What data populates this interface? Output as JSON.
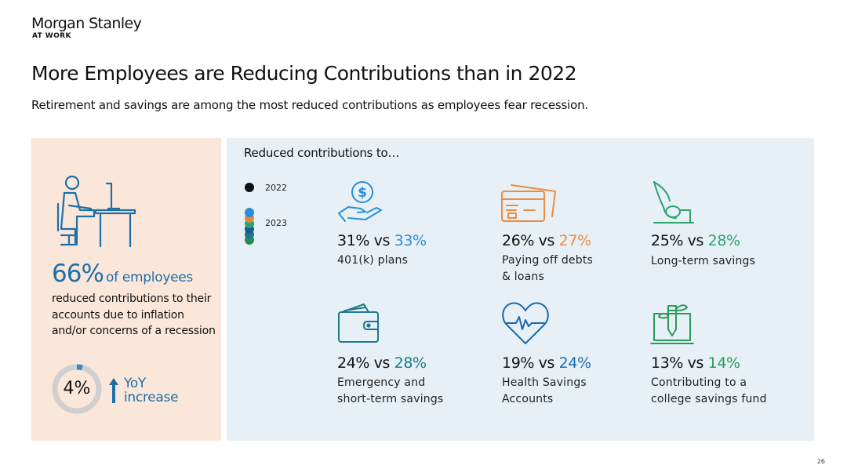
{
  "brand": {
    "name": "Morgan Stanley",
    "sub": "AT WORK"
  },
  "title": "More Employees are Reducing Contributions than in 2022",
  "subtitle": "Retirement and savings are among the most reduced contributions as employees fear recession.",
  "left": {
    "icon": "person-at-desk-icon",
    "big_pct": "66%",
    "big_pct_suffix": "of employees",
    "body": "reduced contributions to their accounts due to inflation and/or concerns of a recession",
    "ring_value": "4%",
    "ring_fraction": 0.04,
    "yoy_line1": "YoY",
    "yoy_line2": "increase"
  },
  "right": {
    "heading": "Reduced contributions to…",
    "legend": [
      {
        "label": "2022",
        "color": "#111111"
      },
      {
        "label": "2023",
        "colors": [
          "#2a8fd6",
          "#e8893a",
          "#2ba56b",
          "#1a5a9a",
          "#1d7a84",
          "#2e8b57"
        ]
      }
    ],
    "items": [
      {
        "icon": "hand-dollar-icon",
        "v2022": "31%",
        "vs": "vs",
        "v2023": "33%",
        "color": "#2a8fd6",
        "label1": "401(k) plans",
        "label2": ""
      },
      {
        "icon": "credit-card-icon",
        "v2022": "26%",
        "vs": "vs",
        "v2023": "27%",
        "color": "#ef8a3f",
        "label1": "Paying off debts",
        "label2": "& loans"
      },
      {
        "icon": "plant-coin-icon",
        "v2022": "25%",
        "vs": "vs",
        "v2023": "28%",
        "color": "#2ba56b",
        "label1": "Long-term savings",
        "label2": ""
      },
      {
        "icon": "wallet-icon",
        "v2022": "24%",
        "vs": "vs",
        "v2023": "28%",
        "color": "#1d7a8c",
        "label1": "Emergency and",
        "label2": "short-term savings"
      },
      {
        "icon": "heart-pulse-icon",
        "v2022": "19%",
        "vs": "vs",
        "v2023": "24%",
        "color": "#1a6bb0",
        "label1": "Health Savings",
        "label2": "Accounts"
      },
      {
        "icon": "laptop-pencil-icon",
        "v2022": "13%",
        "vs": "vs",
        "v2023": "14%",
        "color": "#2a9a5c",
        "label1": "Contributing to a",
        "label2": "college savings fund"
      }
    ]
  },
  "page_number": "26"
}
